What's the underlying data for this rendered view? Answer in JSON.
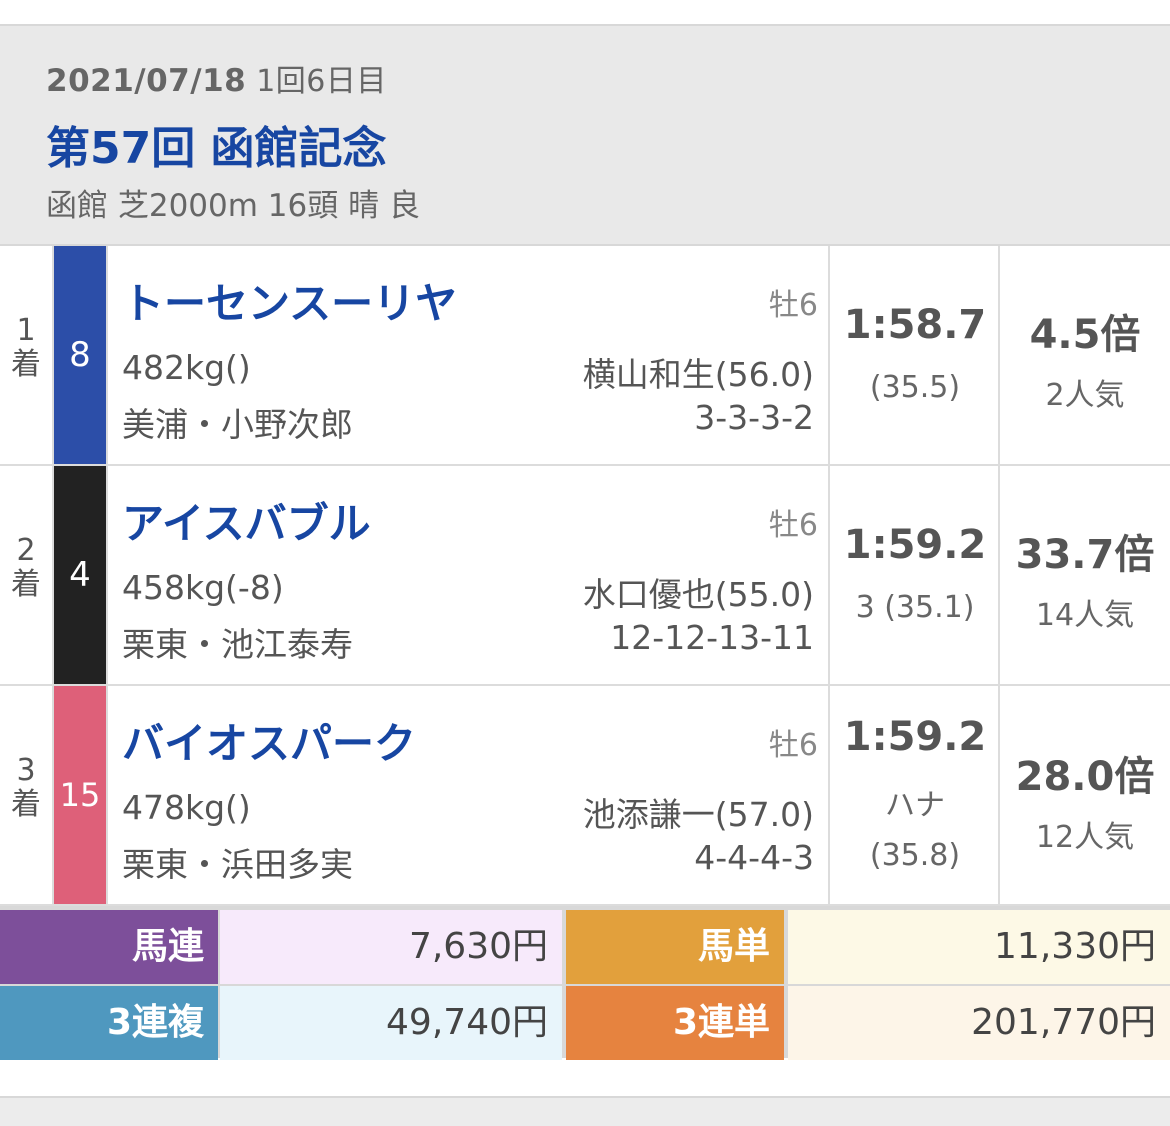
{
  "race": {
    "date": "2021/07/18",
    "kai": "1回6日目",
    "title": "第57回 函館記念",
    "info": "函館 芝2000m 16頭 晴 良"
  },
  "results": [
    {
      "place_num": "1",
      "place_unit": "着",
      "post": "8",
      "post_color": "#2c4ea8",
      "name": "トーセンスーリヤ",
      "sex_age": "牡6",
      "weight": "482kg()",
      "jockey": "横山和生(56.0)",
      "trainer": "美浦・小野次郎",
      "passing": "3-3-3-2",
      "time": "1:58.7",
      "margin": "",
      "last3f": "(35.5)",
      "odds": "4.5倍",
      "popularity": "2人気"
    },
    {
      "place_num": "2",
      "place_unit": "着",
      "post": "4",
      "post_color": "#222222",
      "name": "アイスバブル",
      "sex_age": "牡6",
      "weight": "458kg(-8)",
      "jockey": "水口優也(55.0)",
      "trainer": "栗東・池江泰寿",
      "passing": "12-12-13-11",
      "time": "1:59.2",
      "margin": "3",
      "last3f": "(35.1)",
      "odds": "33.7倍",
      "popularity": "14人気"
    },
    {
      "place_num": "3",
      "place_unit": "着",
      "post": "15",
      "post_color": "#de6079",
      "name": "バイオスパーク",
      "sex_age": "牡6",
      "weight": "478kg()",
      "jockey": "池添謙一(57.0)",
      "trainer": "栗東・浜田多実",
      "passing": "4-4-4-3",
      "time": "1:59.2",
      "margin": "ハナ",
      "last3f": "(35.8)",
      "odds": "28.0倍",
      "popularity": "12人気"
    }
  ],
  "payouts": {
    "umaren_label": "馬連",
    "umaren_value": "7,630円",
    "umatan_label": "馬単",
    "umatan_value": "11,330円",
    "sanrenpuku_label": "3連複",
    "sanrenpuku_value": "49,740円",
    "sanrentan_label": "3連単",
    "sanrentan_value": "201,770円",
    "colors": {
      "umaren": "#7d4f9a",
      "umaren_bg": "#f7eafb",
      "umatan": "#e2a03c",
      "umatan_bg": "#fdf9e6",
      "sanrenpuku": "#4f98bf",
      "sanrenpuku_bg": "#e8f5fb",
      "sanrentan": "#e6833f",
      "sanrentan_bg": "#fdf5e8"
    }
  }
}
